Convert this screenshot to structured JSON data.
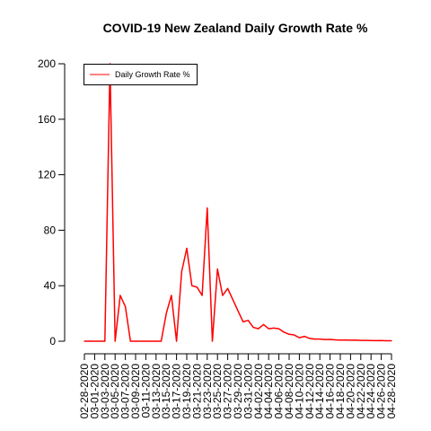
{
  "chart_data": {
    "type": "line",
    "title": "COVID-19 New Zealand Daily Growth Rate %",
    "xlabel": "",
    "ylabel": "",
    "ylim": [
      0,
      200
    ],
    "yticks": [
      0,
      40,
      80,
      120,
      160,
      200
    ],
    "legend": {
      "position": "top-left",
      "entries": [
        "Daily Growth Rate %"
      ]
    },
    "grid": false,
    "x_tick_labels": [
      "02-28-2020",
      "03-01-2020",
      "03-03-2020",
      "03-05-2020",
      "03-07-2020",
      "03-09-2020",
      "03-11-2020",
      "03-13-2020",
      "03-15-2020",
      "03-17-2020",
      "03-19-2020",
      "03-21-2020",
      "03-23-2020",
      "03-25-2020",
      "03-27-2020",
      "03-29-2020",
      "03-31-2020",
      "04-02-2020",
      "04-04-2020",
      "04-06-2020",
      "04-08-2020",
      "04-10-2020",
      "04-12-2020",
      "04-14-2020",
      "04-16-2020",
      "04-18-2020",
      "04-20-2020",
      "04-22-2020",
      "04-24-2020",
      "04-26-2020",
      "04-28-2020"
    ],
    "series": [
      {
        "name": "Daily Growth Rate %",
        "color": "#ff0000",
        "x": [
          "02-28-2020",
          "02-29-2020",
          "03-01-2020",
          "03-02-2020",
          "03-03-2020",
          "03-04-2020",
          "03-05-2020",
          "03-06-2020",
          "03-07-2020",
          "03-08-2020",
          "03-09-2020",
          "03-10-2020",
          "03-11-2020",
          "03-12-2020",
          "03-13-2020",
          "03-14-2020",
          "03-15-2020",
          "03-16-2020",
          "03-17-2020",
          "03-18-2020",
          "03-19-2020",
          "03-20-2020",
          "03-21-2020",
          "03-22-2020",
          "03-23-2020",
          "03-24-2020",
          "03-25-2020",
          "03-26-2020",
          "03-27-2020",
          "03-28-2020",
          "03-29-2020",
          "03-30-2020",
          "03-31-2020",
          "04-01-2020",
          "04-02-2020",
          "04-03-2020",
          "04-04-2020",
          "04-05-2020",
          "04-06-2020",
          "04-07-2020",
          "04-08-2020",
          "04-09-2020",
          "04-10-2020",
          "04-11-2020",
          "04-12-2020",
          "04-13-2020",
          "04-14-2020",
          "04-15-2020",
          "04-16-2020",
          "04-17-2020",
          "04-18-2020",
          "04-19-2020",
          "04-20-2020",
          "04-21-2020",
          "04-22-2020",
          "04-23-2020",
          "04-24-2020",
          "04-25-2020",
          "04-26-2020",
          "04-27-2020",
          "04-28-2020"
        ],
        "values": [
          0,
          0,
          0,
          0,
          0,
          200,
          0,
          33,
          25,
          0,
          0,
          0,
          0,
          0,
          0,
          0,
          20,
          33,
          0,
          50,
          67,
          40,
          39,
          33,
          96,
          0,
          52,
          33,
          38,
          30,
          22,
          14,
          15,
          10,
          9,
          12,
          9,
          9.5,
          9,
          6.5,
          5,
          4.5,
          2.5,
          3.5,
          2,
          1.5,
          1.5,
          1.2,
          1.3,
          1,
          0.8,
          0.9,
          0.7,
          0.8,
          0.6,
          0.6,
          0.5,
          0.4,
          0.5,
          0.3,
          0.3
        ]
      }
    ]
  }
}
